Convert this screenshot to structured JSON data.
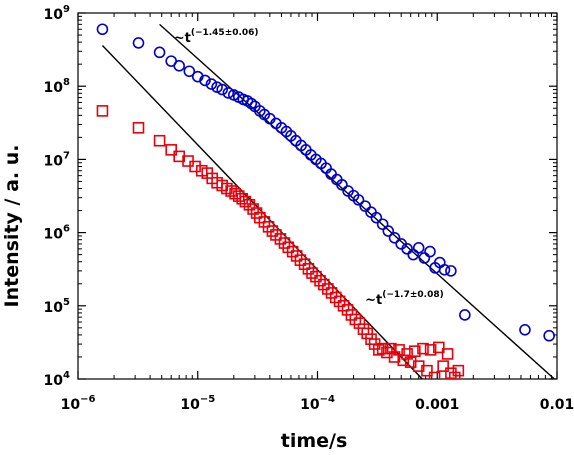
{
  "chart_data": {
    "type": "scatter",
    "xscale": "log",
    "yscale": "log",
    "xlabel": "time/s",
    "ylabel": "Intensity  /  a. u.",
    "xlim": [
      1e-06,
      0.01
    ],
    "ylim": [
      10000,
      1000000000
    ],
    "x_ticks": [
      {
        "value": 1e-06,
        "base": "10",
        "exp": "−6"
      },
      {
        "value": 1e-05,
        "base": "10",
        "exp": "−5"
      },
      {
        "value": 0.0001,
        "base": "10",
        "exp": "−4"
      },
      {
        "value": 0.001,
        "text": "0.001"
      },
      {
        "value": 0.01,
        "text": "0.01"
      }
    ],
    "y_ticks": [
      {
        "value": 10000,
        "base": "10",
        "exp": "4"
      },
      {
        "value": 100000,
        "base": "10",
        "exp": "5"
      },
      {
        "value": 1000000,
        "base": "10",
        "exp": "6"
      },
      {
        "value": 10000000,
        "base": "10",
        "exp": "7"
      },
      {
        "value": 100000000,
        "base": "10",
        "exp": "8"
      },
      {
        "value": 1000000000,
        "base": "10",
        "exp": "9"
      }
    ],
    "series": [
      {
        "marker": "circle",
        "color": "#0000cc",
        "points": [
          [
            1.6e-06,
            600000000.0
          ],
          [
            3.2e-06,
            390000000.0
          ],
          [
            4.8e-06,
            290000000.0
          ],
          [
            6e-06,
            220000000.0
          ],
          [
            7e-06,
            190000000.0
          ],
          [
            8.5e-06,
            160000000.0
          ],
          [
            1e-05,
            135000000.0
          ],
          [
            1.15e-05,
            120000000.0
          ],
          [
            1.3e-05,
            107000000.0
          ],
          [
            1.45e-05,
            97000000.0
          ],
          [
            1.6e-05,
            90000000.0
          ],
          [
            1.8e-05,
            81000000.0
          ],
          [
            2e-05,
            76000000.0
          ],
          [
            2.2e-05,
            71000000.0
          ],
          [
            2.4e-05,
            66000000.0
          ],
          [
            2.6e-05,
            63000000.0
          ],
          [
            2.8e-05,
            58000000.0
          ],
          [
            3e-05,
            53000000.0
          ],
          [
            3.3e-05,
            46000000.0
          ],
          [
            3.6e-05,
            41000000.0
          ],
          [
            4e-05,
            36000000.0
          ],
          [
            4.5e-05,
            31000000.0
          ],
          [
            5e-05,
            27000000.0
          ],
          [
            5.5e-05,
            24000000.0
          ],
          [
            6e-05,
            21000000.0
          ],
          [
            6.6e-05,
            18000000.0
          ],
          [
            7.3e-05,
            15500000.0
          ],
          [
            8e-05,
            13500000.0
          ],
          [
            8.8e-05,
            11500000.0
          ],
          [
            9.7e-05,
            10000000.0
          ],
          [
            0.000107,
            8800000.0
          ],
          [
            0.000118,
            7600000.0
          ],
          [
            0.00013,
            6300000.0
          ],
          [
            0.000145,
            5300000.0
          ],
          [
            0.00016,
            4500000.0
          ],
          [
            0.00018,
            3700000.0
          ],
          [
            0.0002,
            3200000.0
          ],
          [
            0.00022,
            2800000.0
          ],
          [
            0.00025,
            2300000.0
          ],
          [
            0.00028,
            1900000.0
          ],
          [
            0.00031,
            1600000.0
          ],
          [
            0.00035,
            1300000.0
          ],
          [
            0.00039,
            1050000.0
          ],
          [
            0.00044,
            850000.0
          ],
          [
            0.0005,
            700000.0
          ],
          [
            0.00056,
            600000.0
          ],
          [
            0.00063,
            500000.0
          ],
          [
            0.0007,
            620000.0
          ],
          [
            0.00078,
            450000.0
          ],
          [
            0.00087,
            550000.0
          ],
          [
            0.00096,
            330000.0
          ],
          [
            0.00105,
            390000.0
          ],
          [
            0.00115,
            310000.0
          ],
          [
            0.0013,
            300000.0
          ],
          [
            0.0017,
            75000.0
          ],
          [
            0.0054,
            47000.0
          ],
          [
            0.0086,
            39000.0
          ]
        ]
      },
      {
        "marker": "square",
        "color": "#e8000b",
        "points": [
          [
            1.6e-06,
            46000000.0
          ],
          [
            3.2e-06,
            27000000.0
          ],
          [
            4.8e-06,
            18000000.0
          ],
          [
            6e-06,
            13500000.0
          ],
          [
            7e-06,
            11000000.0
          ],
          [
            8.3e-06,
            9500000.0
          ],
          [
            9.5e-06,
            8000000.0
          ],
          [
            1.08e-05,
            7000000.0
          ],
          [
            1.2e-05,
            6500000.0
          ],
          [
            1.32e-05,
            5500000.0
          ],
          [
            1.45e-05,
            4800000.0
          ],
          [
            1.6e-05,
            4400000.0
          ],
          [
            1.75e-05,
            4000000.0
          ],
          [
            1.9e-05,
            3700000.0
          ],
          [
            2.05e-05,
            3400000.0
          ],
          [
            2.2e-05,
            3150000.0
          ],
          [
            2.35e-05,
            2900000.0
          ],
          [
            2.5e-05,
            2650000.0
          ],
          [
            2.7e-05,
            2400000.0
          ],
          [
            2.9e-05,
            2100000.0
          ],
          [
            3.1e-05,
            1850000.0
          ],
          [
            3.3e-05,
            1600000.0
          ],
          [
            3.6e-05,
            1400000.0
          ],
          [
            3.9e-05,
            1200000.0
          ],
          [
            4.2e-05,
            1050000.0
          ],
          [
            4.5e-05,
            930000.0
          ],
          [
            4.9e-05,
            820000.0
          ],
          [
            5.3e-05,
            720000.0
          ],
          [
            5.7e-05,
            630000.0
          ],
          [
            6.2e-05,
            550000.0
          ],
          [
            6.7e-05,
            480000.0
          ],
          [
            7.2e-05,
            420000.0
          ],
          [
            7.8e-05,
            370000.0
          ],
          [
            8.4e-05,
            320000.0
          ],
          [
            9e-05,
            280000.0
          ],
          [
            9.7e-05,
            250000.0
          ],
          [
            0.000105,
            220000.0
          ],
          [
            0.000113,
            195000.0
          ],
          [
            0.000122,
            170000.0
          ],
          [
            0.000131,
            150000.0
          ],
          [
            0.000142,
            130000.0
          ],
          [
            0.000153,
            115000.0
          ],
          [
            0.000165,
            100000.0
          ],
          [
            0.000178,
            88000.0
          ],
          [
            0.000192,
            75000.0
          ],
          [
            0.000207,
            65000.0
          ],
          [
            0.000224,
            58000.0
          ],
          [
            0.000242,
            48000.0
          ],
          [
            0.00026,
            42000.0
          ],
          [
            0.00028,
            35000.0
          ],
          [
            0.0003,
            30000.0
          ],
          [
            0.000325,
            25000.0
          ],
          [
            0.00035,
            26000.0
          ],
          [
            0.00038,
            23000.0
          ],
          [
            0.00041,
            26000.0
          ],
          [
            0.00044,
            20000.0
          ],
          [
            0.00048,
            25000.0
          ],
          [
            0.00052,
            18000.0
          ],
          [
            0.00056,
            22000.0
          ],
          [
            0.0006,
            17000.0
          ],
          [
            0.00065,
            24000.0
          ],
          [
            0.0007,
            15000.0
          ],
          [
            0.00076,
            26000.0
          ],
          [
            0.00082,
            13000.0
          ],
          [
            0.00088,
            25000.0
          ],
          [
            0.00095,
            10500.0
          ],
          [
            0.00103,
            27000.0
          ],
          [
            0.00112,
            15000.0
          ],
          [
            0.00122,
            22000.0
          ],
          [
            0.0013,
            12000.0
          ],
          [
            0.0014,
            10500.0
          ],
          [
            0.0015,
            13000.0
          ]
        ]
      }
    ],
    "fit_lines": [
      {
        "color": "#000000",
        "from": [
          4.8e-06,
          700000000.0
        ],
        "to": [
          0.0095,
          10000
        ],
        "label_prefix": "~t",
        "label_exponent": "(−1.45±0.06)",
        "label_at": [
          6.3e-06,
          400000000.0
        ]
      },
      {
        "color": "#000000",
        "from": [
          1.6e-06,
          360000000.0
        ],
        "to": [
          0.00075,
          10000
        ],
        "label_prefix": "~t",
        "label_exponent": "(−1.7±0.08)",
        "label_at": [
          0.00025,
          105000.0
        ]
      }
    ]
  }
}
